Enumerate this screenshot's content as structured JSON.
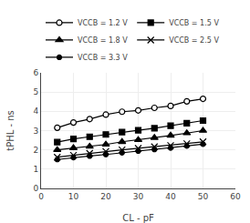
{
  "chart_data": {
    "type": "line",
    "xlabel": "CL - pF",
    "ylabel": "tPHL - ns",
    "x": [
      5,
      10,
      15,
      20,
      25,
      30,
      35,
      40,
      45,
      50
    ],
    "series": [
      {
        "name": "VCCB = 1.2 V",
        "color": "#000000",
        "marker": "open circle",
        "values": [
          3.15,
          3.42,
          3.6,
          3.83,
          3.98,
          4.05,
          4.18,
          4.28,
          4.52,
          4.65
        ]
      },
      {
        "name": "VCCB = 1.5 V",
        "color": "#000000",
        "marker": "square",
        "values": [
          2.4,
          2.57,
          2.68,
          2.8,
          2.92,
          3.02,
          3.12,
          3.25,
          3.38,
          3.52
        ]
      },
      {
        "name": "VCCB = 1.8 V",
        "color": "#000000",
        "marker": "triangle",
        "values": [
          2.0,
          2.1,
          2.18,
          2.28,
          2.42,
          2.52,
          2.63,
          2.75,
          2.87,
          3.0
        ]
      },
      {
        "name": "VCCB = 2.5 V",
        "color": "#000000",
        "marker": "x",
        "values": [
          1.62,
          1.72,
          1.82,
          1.92,
          2.0,
          2.08,
          2.16,
          2.23,
          2.32,
          2.42
        ]
      },
      {
        "name": "VCCB = 3.3 V",
        "color": "#000000",
        "marker": "circle",
        "values": [
          1.5,
          1.6,
          1.68,
          1.76,
          1.85,
          1.94,
          2.02,
          2.1,
          2.2,
          2.3
        ]
      }
    ],
    "xlim": [
      0,
      60
    ],
    "ylim": [
      0,
      6
    ],
    "xticks": [
      0,
      10,
      20,
      30,
      40,
      50,
      60
    ],
    "yticks": [
      0,
      1,
      2,
      3,
      4,
      5,
      6
    ],
    "grid": true,
    "legend": "top"
  }
}
